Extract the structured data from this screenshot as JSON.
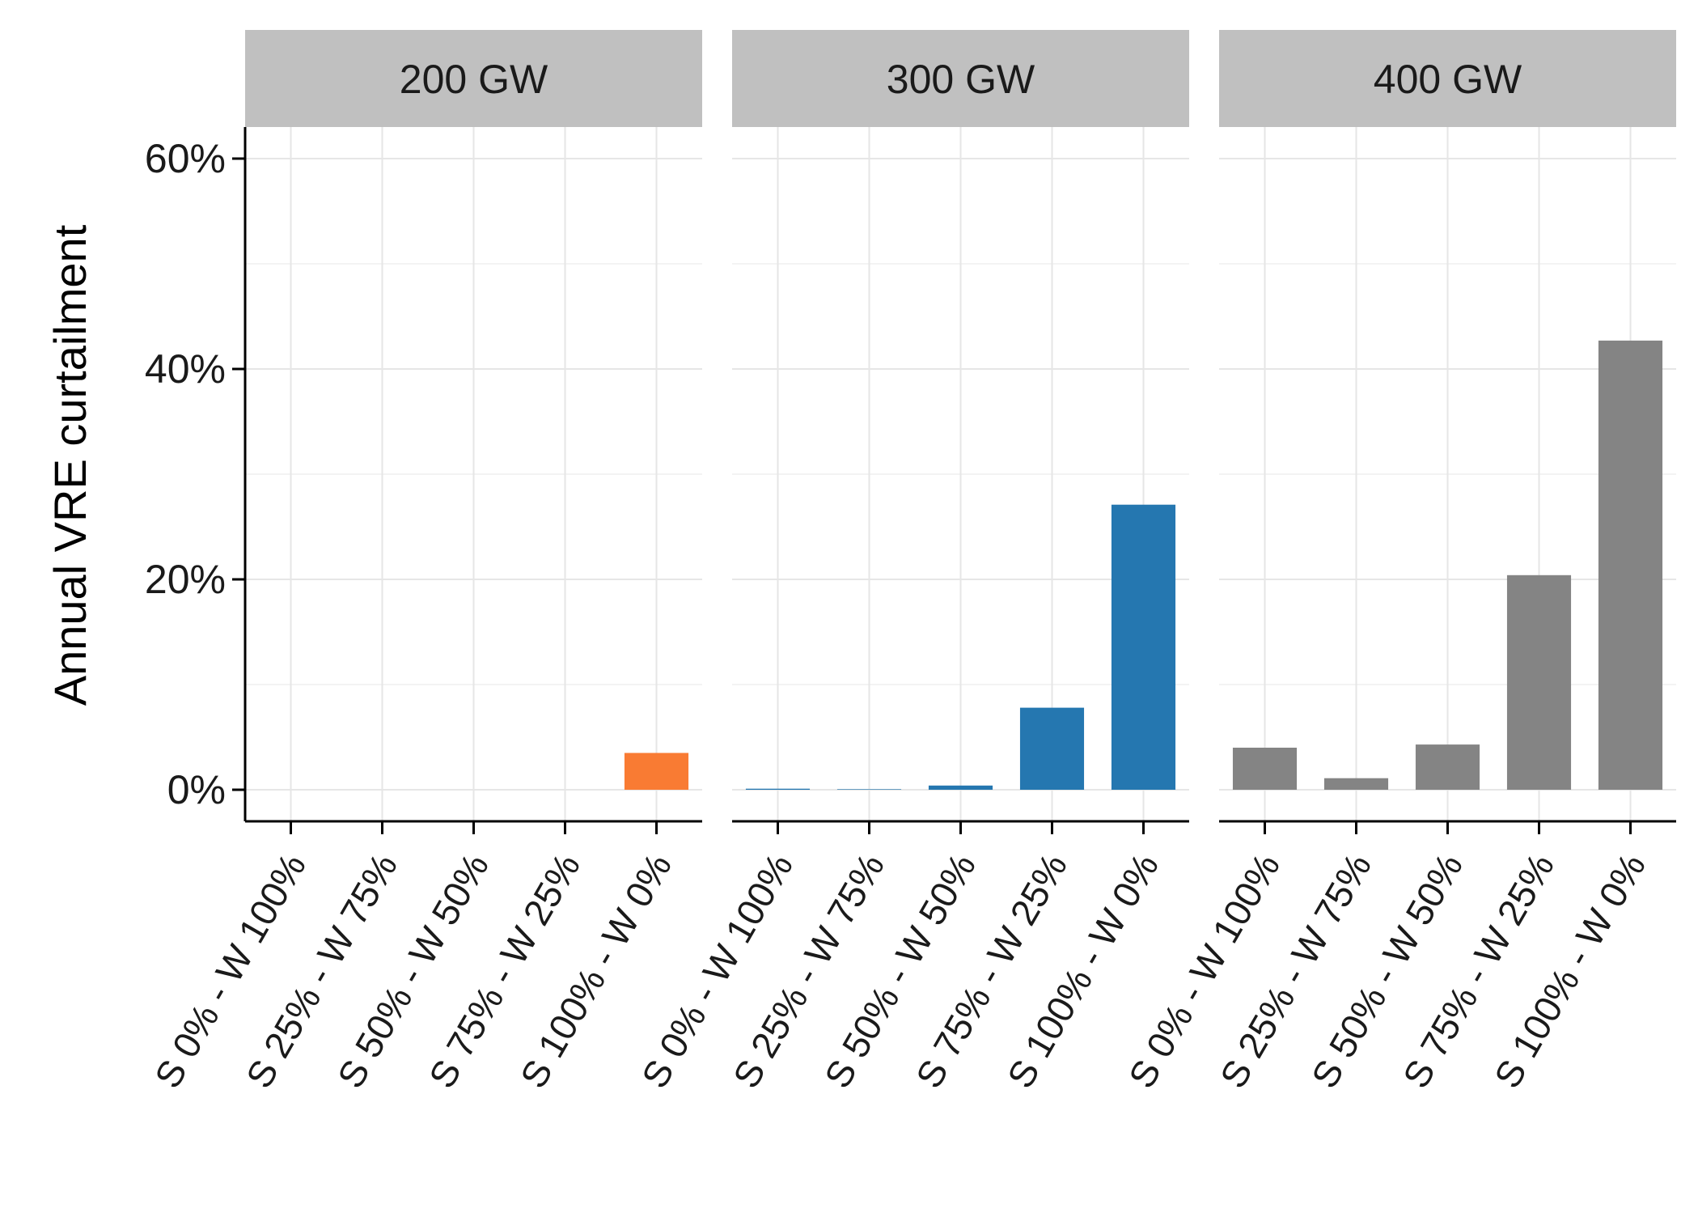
{
  "chart_data": {
    "type": "bar",
    "ylabel": "Annual VRE curtailment",
    "xlabel": "",
    "ylim": [
      -0.03,
      0.63
    ],
    "y_ticks": [
      0,
      0.2,
      0.4,
      0.6
    ],
    "y_tick_labels": [
      "0%",
      "20%",
      "40%",
      "60%"
    ],
    "grid": true,
    "legend": "none",
    "categories": [
      "S 0% - W 100%",
      "S 25% - W 75%",
      "S 50% - W 50%",
      "S 75% - W 25%",
      "S 100% - W 0%"
    ],
    "panels": [
      {
        "label": "200 GW",
        "color": "#f97b33",
        "values": [
          0,
          0,
          0,
          0,
          0.035
        ]
      },
      {
        "label": "300 GW",
        "color": "#2577b0",
        "values": [
          0.001,
          0.0005,
          0.004,
          0.078,
          0.271
        ]
      },
      {
        "label": "400 GW",
        "color": "#848484",
        "values": [
          0.04,
          0.011,
          0.043,
          0.204,
          0.427
        ]
      }
    ]
  }
}
